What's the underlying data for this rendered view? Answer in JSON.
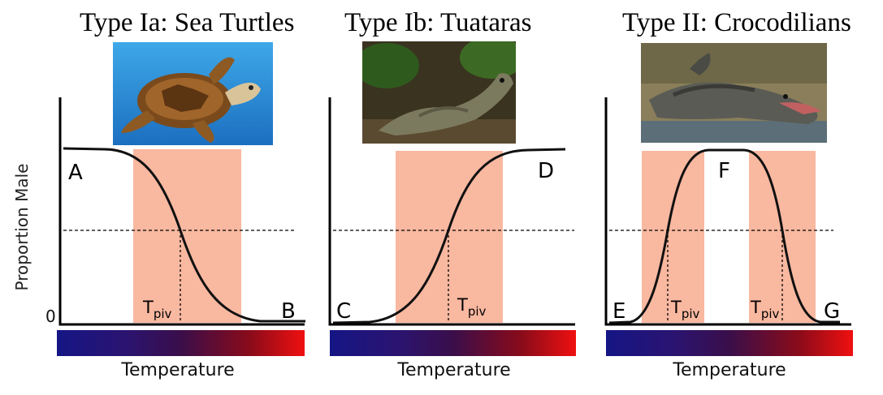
{
  "panels": [
    {
      "title": "Type Ia: Sea Turtles",
      "image": "sea-turtle-photo",
      "curve": "decreasing",
      "letters": [
        "A",
        "B"
      ],
      "pivot_label": "T",
      "pivot_sub": "piv"
    },
    {
      "title": "Type Ib: Tuataras",
      "image": "tuatara-photo",
      "curve": "increasing",
      "letters": [
        "C",
        "D"
      ],
      "pivot_label": "T",
      "pivot_sub": "piv"
    },
    {
      "title": "Type II: Crocodilians",
      "image": "crocodilian-photo",
      "curve": "peaked",
      "letters": [
        "E",
        "F",
        "G"
      ],
      "pivot_label": "T",
      "pivot_sub": "piv"
    }
  ],
  "y_axis_label": "Proportion Male",
  "y_zero_label": "0",
  "x_axis_label": "Temperature",
  "colors": {
    "tsd_band": "#f9b8a0",
    "curve": "#111111",
    "gradient_cold": "#151585",
    "gradient_hot": "#f01010"
  }
}
